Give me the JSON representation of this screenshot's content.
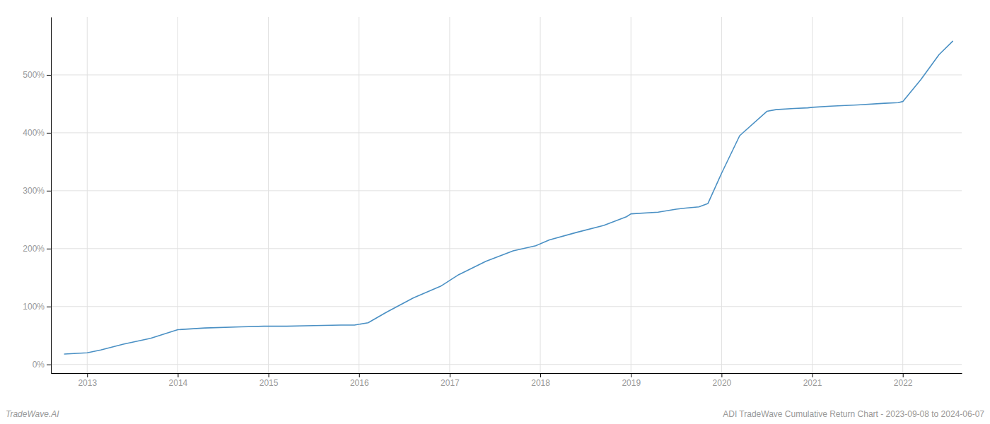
{
  "chart_data": {
    "type": "line",
    "color": "#4a90c4",
    "x": [
      2012.75,
      2013.0,
      2013.15,
      2013.4,
      2013.7,
      2014.0,
      2014.3,
      2014.7,
      2014.95,
      2015.0,
      2015.2,
      2015.5,
      2015.8,
      2015.95,
      2016.1,
      2016.3,
      2016.6,
      2016.9,
      2017.1,
      2017.4,
      2017.7,
      2017.95,
      2018.1,
      2018.4,
      2018.7,
      2018.95,
      2019.0,
      2019.3,
      2019.5,
      2019.6,
      2019.75,
      2019.85,
      2020.0,
      2020.2,
      2020.5,
      2020.6,
      2020.8,
      2020.95,
      2021.0,
      2021.2,
      2021.5,
      2021.8,
      2021.95,
      2022.0,
      2022.2,
      2022.4,
      2022.55
    ],
    "values": [
      18,
      20,
      25,
      35,
      45,
      60,
      63,
      65,
      66,
      66,
      66,
      67,
      68,
      68,
      72,
      90,
      115,
      135,
      155,
      178,
      196,
      205,
      215,
      228,
      240,
      255,
      260,
      263,
      268,
      270,
      272,
      278,
      330,
      395,
      437,
      440,
      442,
      443,
      444,
      446,
      448,
      451,
      452,
      454,
      492,
      535,
      558
    ],
    "xlim": [
      2012.6,
      2022.65
    ],
    "ylim": [
      -15,
      600
    ],
    "xticks": [
      2013,
      2014,
      2015,
      2016,
      2017,
      2018,
      2019,
      2020,
      2021,
      2022
    ],
    "yticks": [
      {
        "value": 0,
        "label": "0%"
      },
      {
        "value": 100,
        "label": "100%"
      },
      {
        "value": 200,
        "label": "200%"
      },
      {
        "value": 300,
        "label": "300%"
      },
      {
        "value": 400,
        "label": "400%"
      },
      {
        "value": 500,
        "label": "500%"
      }
    ],
    "grid": true,
    "annotations": [
      "TradeWave.AI",
      "ADI TradeWave Cumulative Return Chart - 2023-09-08 to 2024-06-07"
    ]
  }
}
